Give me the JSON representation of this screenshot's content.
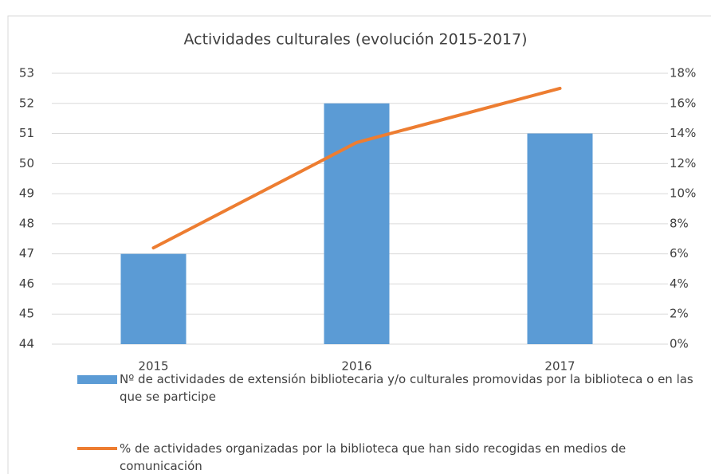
{
  "chart_data": {
    "type": "bar_line",
    "title": "Actividades culturales (evolución 2015-2017)",
    "categories": [
      "2015",
      "2016",
      "2017"
    ],
    "series": [
      {
        "name": "Nº de actividades de extensión bibliotecaria y/o culturales promovidas por la biblioteca o en las que se participe",
        "type": "bar",
        "color": "#5b9bd5",
        "values": [
          47,
          52,
          51
        ]
      },
      {
        "name": "% de actividades organizadas por la biblioteca que han sido recogidas en medios de comunicación",
        "type": "line",
        "color": "#ed7d31",
        "axis": "y2",
        "values": [
          6.4,
          13.4,
          17
        ]
      }
    ],
    "ylim": [
      44,
      53
    ],
    "yticks": [
      44,
      45,
      46,
      47,
      48,
      49,
      50,
      51,
      52,
      53
    ],
    "y2lim": [
      0,
      18
    ],
    "y2ticks": [
      {
        "value": 0,
        "label": "0%"
      },
      {
        "value": 2,
        "label": "2%"
      },
      {
        "value": 4,
        "label": "4%"
      },
      {
        "value": 6,
        "label": "6%"
      },
      {
        "value": 8,
        "label": "8%"
      },
      {
        "value": 10,
        "label": "10%"
      },
      {
        "value": 12,
        "label": "12%"
      },
      {
        "value": 14,
        "label": "14%"
      },
      {
        "value": 16,
        "label": "16%"
      },
      {
        "value": 18,
        "label": "18%"
      }
    ],
    "grid": true
  }
}
